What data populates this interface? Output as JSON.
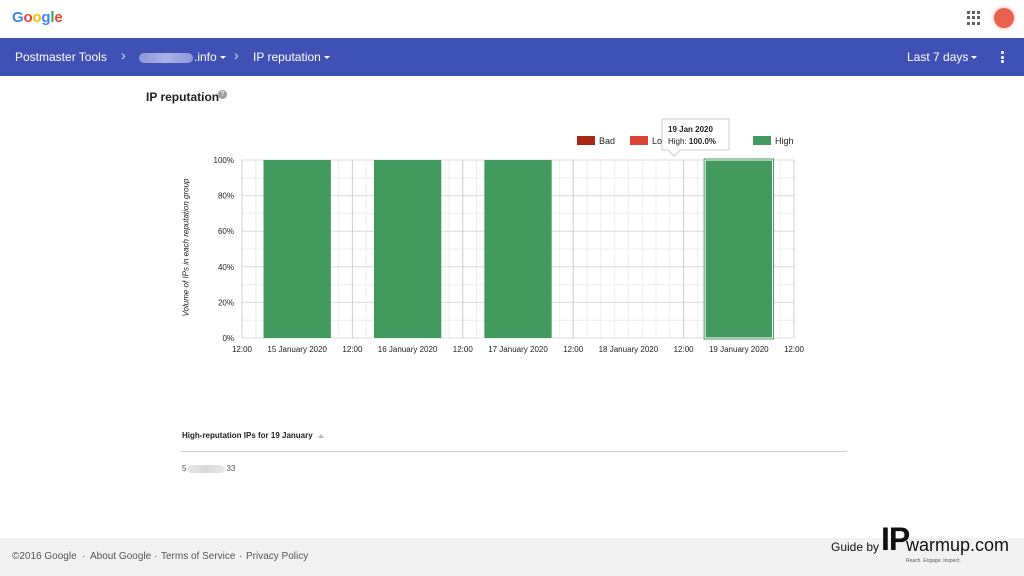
{
  "google_logo": {
    "letters": [
      {
        "ch": "G",
        "color": "#4285F4"
      },
      {
        "ch": "o",
        "color": "#EA4335"
      },
      {
        "ch": "o",
        "color": "#FBBC05"
      },
      {
        "ch": "g",
        "color": "#4285F4"
      },
      {
        "ch": "l",
        "color": "#34A853"
      },
      {
        "ch": "e",
        "color": "#EA4335"
      }
    ]
  },
  "topbar": {
    "apps_icon": "grid-icon",
    "avatar_color": "#e8624f"
  },
  "nav": {
    "app_title": "Postmaster Tools",
    "domain_suffix": ".info",
    "dashboard": "IP reputation",
    "date_range": "Last 7 days",
    "bar_color": "#3f51b5"
  },
  "page": {
    "title": "IP reputation"
  },
  "chart_data": {
    "type": "bar",
    "stacked": true,
    "ylabel": "Volume of IPs in each reputation group",
    "y_ticks": [
      "100%",
      "80%",
      "60%",
      "40%",
      "20%",
      "0%"
    ],
    "ylim": [
      0,
      100
    ],
    "x_tick_labels": [
      "12:00",
      "15 January 2020",
      "12:00",
      "16 January 2020",
      "12:00",
      "17 January 2020",
      "12:00",
      "18 January 2020",
      "12:00",
      "19 January 2020",
      "12:00"
    ],
    "categories": [
      "15 January 2020",
      "16 January 2020",
      "17 January 2020",
      "18 January 2020",
      "19 January 2020"
    ],
    "series": [
      {
        "name": "Bad",
        "color": "#a52714",
        "values": [
          0,
          0,
          0,
          0,
          0
        ]
      },
      {
        "name": "Low",
        "color": "#db4437",
        "values": [
          0,
          0,
          0,
          0,
          0
        ]
      },
      {
        "name": "Medium",
        "color": "#f4b400",
        "values": [
          0,
          0,
          0,
          0,
          0
        ]
      },
      {
        "name": "High",
        "color": "#439a5f",
        "values": [
          100,
          100,
          100,
          0,
          100
        ]
      }
    ],
    "legend": {
      "placement": "top-right",
      "visible": [
        "Bad",
        "Lo",
        "um",
        "High"
      ]
    },
    "highlighted_category": "19 January 2020",
    "grid": true,
    "tooltip": {
      "title": "19 Jan 2020",
      "label": "High: ",
      "value": "100.0%"
    }
  },
  "ip_table": {
    "header": "High-reputation IPs for 19 January",
    "rows": [
      {
        "prefix": "5",
        "suffix": "33"
      }
    ]
  },
  "footer": {
    "copyright": "©2016 Google",
    "sep": "·",
    "links": [
      "About Google",
      "Terms of Service",
      "Privacy Policy"
    ]
  },
  "watermark": {
    "guide": "Guide by",
    "ip": "IP",
    "brand": "warmup.com",
    "tagline": "Reach. Engage. Inspect."
  }
}
